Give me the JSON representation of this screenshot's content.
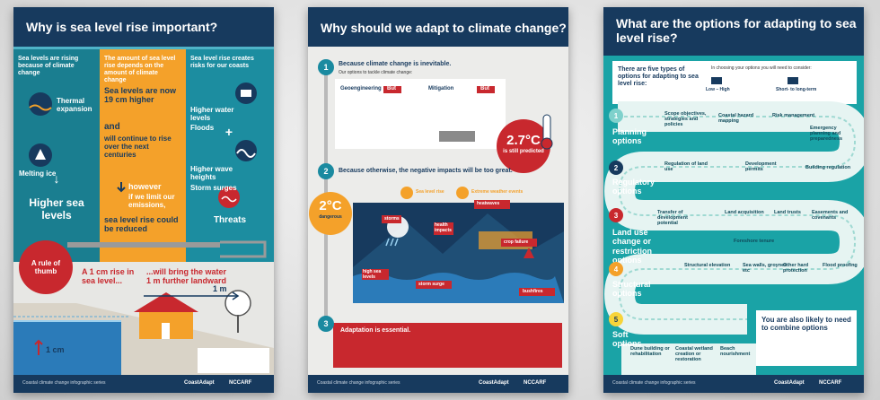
{
  "posters": [
    {
      "title": "Why is sea level rise important?",
      "col1": {
        "heading": "Sea levels are rising because of climate change",
        "items": [
          "Thermal expansion",
          "Melting ice"
        ],
        "result": "Higher sea levels"
      },
      "col2": {
        "heading": "The amount of sea level rise depends on the amount of climate change",
        "lines": [
          "Sea levels are now 19 cm higher",
          "and",
          "will continue to rise over the next centuries",
          "however",
          "if we limit our emissions,",
          "sea level rise could be reduced"
        ]
      },
      "col3": {
        "heading": "Sea level rise creates risks for our coasts",
        "items": [
          "Higher water levels",
          "Floods",
          "Higher wave heights",
          "Storm surges"
        ],
        "result": "Threats"
      },
      "thumb": "A rule of thumb",
      "rise": "A 1 cm rise in sea level...",
      "landward": "...will bring the water 1 m further landward",
      "m1": "1 m",
      "cm1": "1 cm",
      "footer": "Coastal climate change infographic series"
    },
    {
      "title": "Why should we adapt to climate change?",
      "steps": [
        {
          "number": "1",
          "heading": "Because climate change is inevitable.",
          "sub": "Our options to tackle climate change:"
        },
        {
          "number": "2",
          "heading": "Because otherwise, the negative impacts will be too great."
        },
        {
          "number": "3",
          "heading": "Adaptation is essential."
        }
      ],
      "options": [
        "Geoengineering",
        "But",
        "Mitigation",
        "But"
      ],
      "temp": "2.7°C",
      "temp_sub": "is still predicted",
      "impact_types": [
        "Sea level rise",
        "Extreme weather events"
      ],
      "limit": "2°C",
      "limit_sub": "dangerous",
      "labels": [
        "heatwaves",
        "storms",
        "health impacts",
        "crop failure",
        "high sea levels",
        "storm surge",
        "bushfires"
      ],
      "footer": "Coastal climate change infographic series"
    },
    {
      "title": "What are the options for adapting to sea level rise?",
      "intro": "There are five types of options for adapting to sea level rise:",
      "consider": "In choosing your options you will need to consider:",
      "scales": [
        "Low – High",
        "Short- to long-term"
      ],
      "options": [
        {
          "number": "1",
          "label": "Planning options"
        },
        {
          "number": "2",
          "label": "Regulatory options"
        },
        {
          "number": "3",
          "label": "Land use change or restriction options"
        },
        {
          "number": "4",
          "label": "Structural options"
        },
        {
          "number": "5",
          "label": "Soft options"
        }
      ],
      "items": [
        "Scope objectives, strategies and policies",
        "Coastal hazard mapping",
        "Risk management",
        "Emergency planning and preparedness",
        "Regulation of land use",
        "Development permits",
        "Building regulation",
        "Transfer of development potential",
        "Land acquisition",
        "Land trusts",
        "Easements and covenants",
        "Foreshore tenure",
        "Structural elevation",
        "Sea walls, groynes etc",
        "Other hard protection",
        "Flood proofing",
        "Dune building or rehabilitation",
        "Coastal wetland creation or restoration",
        "Beach nourishment"
      ],
      "combine": "You are also likely to need to combine options",
      "footer": "Coastal climate change infographic series"
    }
  ],
  "logos": [
    "CoastAdapt",
    "NCCARF"
  ]
}
